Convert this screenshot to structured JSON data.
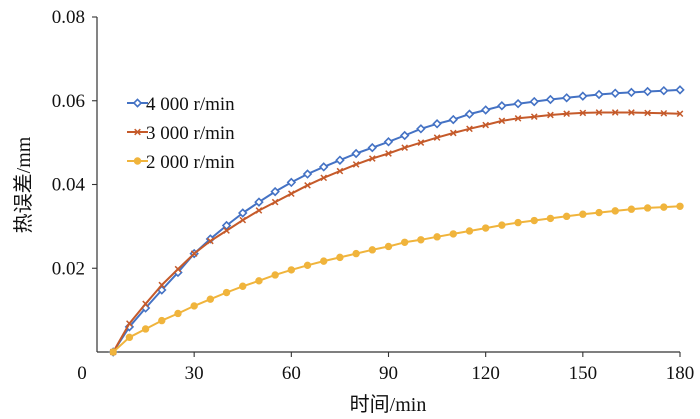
{
  "chart_data": {
    "type": "line",
    "title": "",
    "xlabel": "时间/min",
    "ylabel": "热误差/mm",
    "xlim": [
      0,
      180
    ],
    "ylim": [
      0,
      0.08
    ],
    "x_ticks": [
      "0",
      "30",
      "60",
      "90",
      "120",
      "150",
      "180"
    ],
    "y_ticks": [
      "0.02",
      "0.04",
      "0.06",
      "0.08"
    ],
    "origin_label": "0",
    "grid": false,
    "legend_position": "upper-left",
    "series": [
      {
        "name": "4 000 r/min",
        "color": "#4472C4",
        "marker": "diamond",
        "x": [
          5,
          10,
          15,
          20,
          25,
          30,
          35,
          40,
          45,
          50,
          55,
          60,
          65,
          70,
          75,
          80,
          85,
          90,
          95,
          100,
          105,
          110,
          115,
          120,
          125,
          130,
          135,
          140,
          145,
          150,
          155,
          160,
          165,
          170,
          175,
          180
        ],
        "y": [
          0.0,
          0.006,
          0.0105,
          0.0148,
          0.019,
          0.0235,
          0.027,
          0.0302,
          0.0332,
          0.0358,
          0.0383,
          0.0405,
          0.0425,
          0.0442,
          0.0458,
          0.0474,
          0.0488,
          0.0502,
          0.0517,
          0.0533,
          0.0545,
          0.0555,
          0.0568,
          0.0578,
          0.0588,
          0.0593,
          0.0598,
          0.0603,
          0.0607,
          0.0611,
          0.0615,
          0.0618,
          0.062,
          0.0622,
          0.0624,
          0.0626
        ]
      },
      {
        "name": "3 000 r/min",
        "color": "#C55A2A",
        "marker": "cross",
        "x": [
          5,
          10,
          15,
          20,
          25,
          30,
          35,
          40,
          45,
          50,
          55,
          60,
          65,
          70,
          75,
          80,
          85,
          90,
          95,
          100,
          105,
          110,
          115,
          120,
          125,
          130,
          135,
          140,
          145,
          150,
          155,
          160,
          165,
          170,
          175,
          180
        ],
        "y": [
          0.0,
          0.0068,
          0.0115,
          0.016,
          0.0198,
          0.0235,
          0.0265,
          0.029,
          0.0315,
          0.0338,
          0.0358,
          0.0378,
          0.0398,
          0.0416,
          0.0432,
          0.0448,
          0.0462,
          0.0474,
          0.0488,
          0.05,
          0.0512,
          0.0523,
          0.0533,
          0.0542,
          0.0552,
          0.0558,
          0.0562,
          0.0566,
          0.0569,
          0.0571,
          0.0572,
          0.0572,
          0.0572,
          0.0571,
          0.057,
          0.0569
        ]
      },
      {
        "name": "2 000 r/min",
        "color": "#F0B43C",
        "marker": "circle",
        "x": [
          5,
          10,
          15,
          20,
          25,
          30,
          35,
          40,
          45,
          50,
          55,
          60,
          65,
          70,
          75,
          80,
          85,
          90,
          95,
          100,
          105,
          110,
          115,
          120,
          125,
          130,
          135,
          140,
          145,
          150,
          155,
          160,
          165,
          170,
          175,
          180
        ],
        "y": [
          0.0,
          0.0035,
          0.0055,
          0.0075,
          0.0092,
          0.011,
          0.0126,
          0.0142,
          0.0157,
          0.017,
          0.0184,
          0.0196,
          0.0207,
          0.0217,
          0.0226,
          0.0235,
          0.0244,
          0.0252,
          0.0262,
          0.0268,
          0.0275,
          0.0282,
          0.0289,
          0.0296,
          0.0303,
          0.0309,
          0.0314,
          0.0319,
          0.0324,
          0.0329,
          0.0333,
          0.0337,
          0.0341,
          0.0344,
          0.0346,
          0.0348
        ]
      }
    ]
  }
}
